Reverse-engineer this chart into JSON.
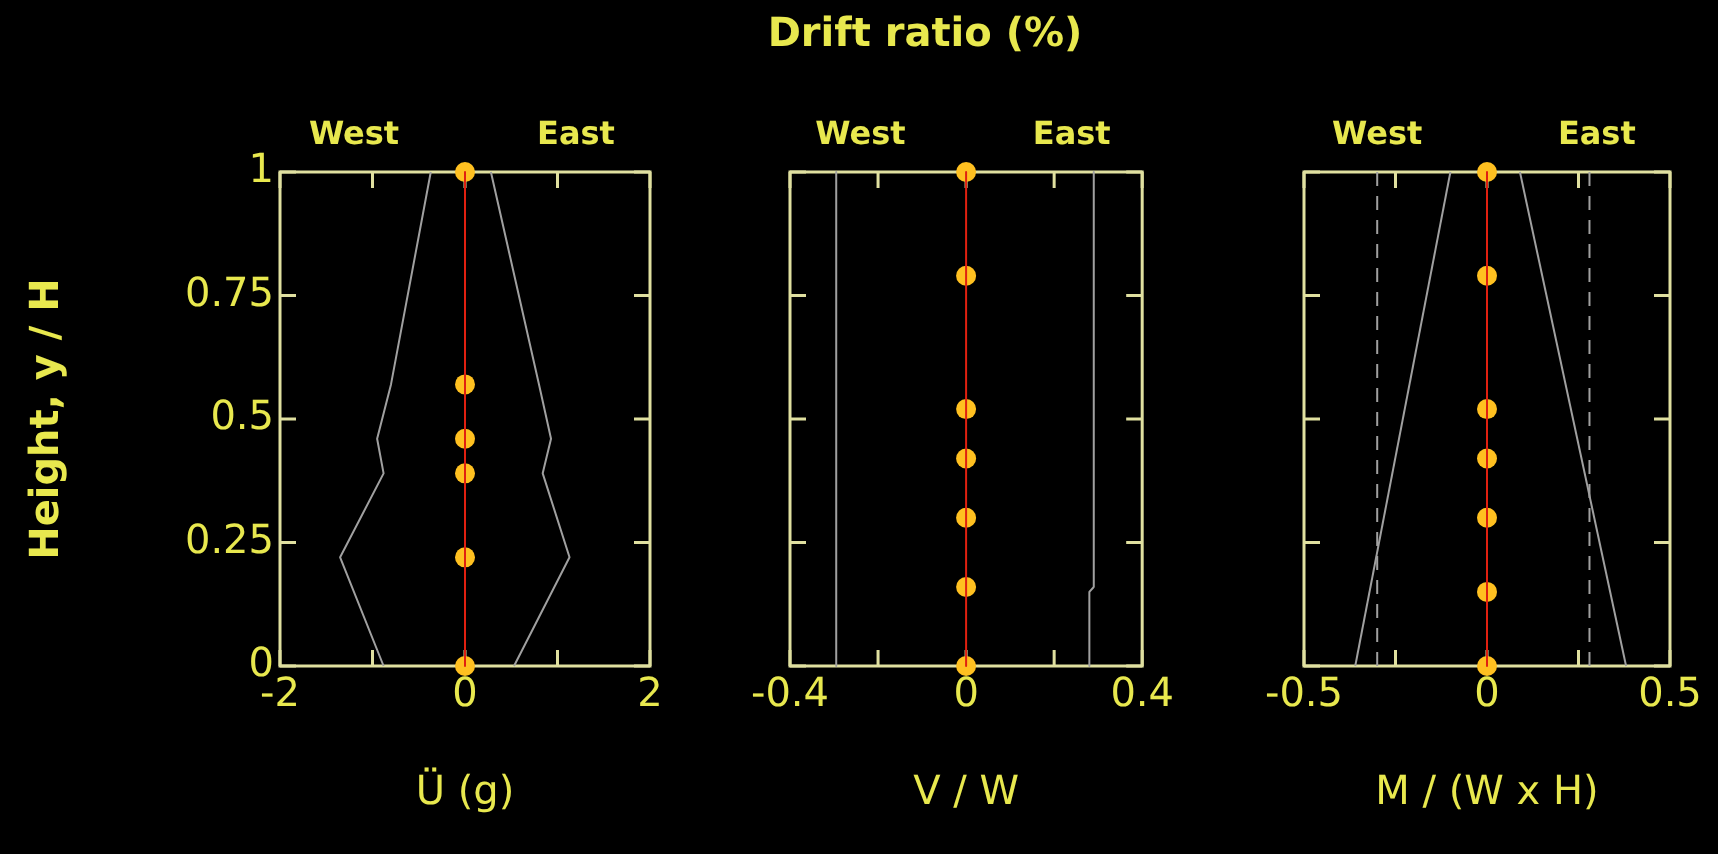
{
  "chart_data": [
    {
      "type": "line",
      "ylabel": "Height, y / H",
      "xlabel": "Ü (g)",
      "annotations": [
        "West",
        "East"
      ],
      "xlim": [
        -2,
        2
      ],
      "xticks": [
        -2,
        {
          "value": -1,
          "label": null
        },
        0,
        {
          "value": 1,
          "label": null
        },
        2
      ],
      "ylim": [
        0,
        1
      ],
      "yticks": [
        0,
        0.25,
        0.5,
        0.75,
        1
      ],
      "grid": false,
      "legend": false,
      "series": [
        {
          "color": "#a0a0a0",
          "marker": "none",
          "x": [
            -0.37,
            -0.8,
            -0.95,
            -0.88,
            -1.35,
            -0.88
          ],
          "values": [
            1,
            0.57,
            0.46,
            0.39,
            0.22,
            0
          ]
        },
        {
          "color": "#a0a0a0",
          "marker": "none",
          "x": [
            0.28,
            0.8,
            0.93,
            0.84,
            1.13,
            0.53
          ],
          "values": [
            1,
            0.57,
            0.46,
            0.39,
            0.22,
            0
          ]
        },
        {
          "color": "#e02010",
          "marker": "none",
          "x": [
            0,
            0,
            0,
            0,
            0,
            0
          ],
          "values": [
            1,
            0.57,
            0.46,
            0.39,
            0.22,
            0
          ]
        },
        {
          "type": "scatter",
          "color": "#ffc020",
          "marker": "circle",
          "x": [
            0,
            0,
            0,
            0,
            0,
            0
          ],
          "values": [
            1,
            0.57,
            0.46,
            0.39,
            0.22,
            0
          ]
        }
      ]
    },
    {
      "type": "line",
      "title": "Drift ratio (%)",
      "xlabel": "V / W",
      "annotations": [
        "West",
        "East"
      ],
      "xlim": [
        -0.4,
        0.4
      ],
      "xticks": [
        -0.4,
        {
          "value": -0.2,
          "label": null
        },
        0,
        {
          "value": 0.2,
          "label": null
        },
        0.4
      ],
      "ylim": [
        0,
        1
      ],
      "yticks": [
        {
          "value": 0,
          "label": null
        },
        {
          "value": 0.25,
          "label": null
        },
        {
          "value": 0.5,
          "label": null
        },
        {
          "value": 0.75,
          "label": null
        },
        {
          "value": 1,
          "label": null
        }
      ],
      "tick_labels": "x",
      "grid": false,
      "legend": false,
      "series": [
        {
          "color": "#a0a0a0",
          "marker": "none",
          "x": [
            -0.295,
            -0.295
          ],
          "values": [
            1,
            0
          ]
        },
        {
          "color": "#a0a0a0",
          "marker": "none",
          "x": [
            0.29,
            0.29,
            0.28,
            0.28
          ],
          "values": [
            1,
            0.16,
            0.15,
            0
          ]
        },
        {
          "color": "#e02010",
          "marker": "none",
          "x": [
            0,
            0,
            0,
            0,
            0,
            0,
            0
          ],
          "values": [
            1,
            0.79,
            0.52,
            0.42,
            0.3,
            0.16,
            0
          ]
        },
        {
          "type": "scatter",
          "color": "#ffc020",
          "marker": "circle",
          "x": [
            0,
            0,
            0,
            0,
            0,
            0,
            0
          ],
          "values": [
            1,
            0.79,
            0.52,
            0.42,
            0.3,
            0.16,
            0
          ]
        }
      ]
    },
    {
      "type": "line",
      "xlabel": "M / (W x H)",
      "annotations": [
        "West",
        "East"
      ],
      "xlim": [
        -0.5,
        0.5
      ],
      "xticks": [
        -0.5,
        {
          "value": -0.25,
          "label": null
        },
        0,
        {
          "value": 0.25,
          "label": null
        },
        0.5
      ],
      "ylim": [
        0,
        1
      ],
      "yticks": [
        {
          "value": 0,
          "label": null
        },
        {
          "value": 0.25,
          "label": null
        },
        {
          "value": 0.5,
          "label": null
        },
        {
          "value": 0.75,
          "label": null
        },
        {
          "value": 1,
          "label": null
        }
      ],
      "tick_labels": "x",
      "grid": false,
      "legend": false,
      "ref_lines": [
        {
          "axis": "x",
          "value": -0.3,
          "color": "#a0a0a0",
          "line_style": "dashed"
        },
        {
          "axis": "x",
          "value": 0.28,
          "color": "#a0a0a0",
          "line_style": "dashed"
        }
      ],
      "series": [
        {
          "color": "#a0a0a0",
          "marker": "none",
          "x": [
            -0.1,
            -0.36
          ],
          "values": [
            1,
            0
          ]
        },
        {
          "color": "#a0a0a0",
          "marker": "none",
          "x": [
            0.09,
            0.38
          ],
          "values": [
            1,
            0
          ]
        },
        {
          "color": "#e02010",
          "marker": "none",
          "x": [
            0,
            0,
            0,
            0,
            0,
            0,
            0
          ],
          "values": [
            1,
            0.79,
            0.52,
            0.42,
            0.3,
            0.15,
            0
          ]
        },
        {
          "type": "scatter",
          "color": "#ffc020",
          "marker": "circle",
          "x": [
            0,
            0,
            0,
            0,
            0,
            0,
            0
          ],
          "values": [
            1,
            0.79,
            0.52,
            0.42,
            0.3,
            0.15,
            0
          ]
        }
      ]
    }
  ]
}
